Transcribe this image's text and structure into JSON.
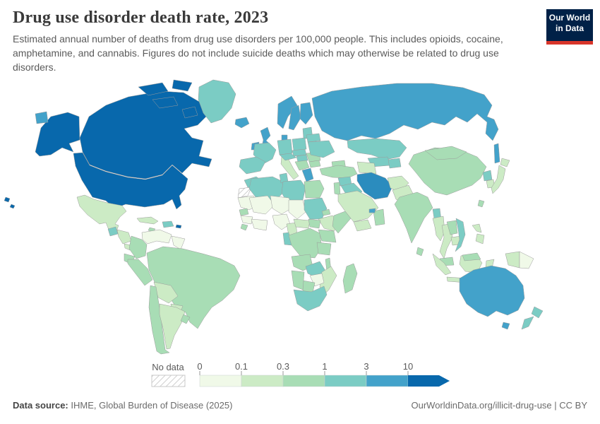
{
  "header": {
    "title": "Drug use disorder death rate, 2023",
    "subtitle": "Estimated annual number of deaths from drug use disorders per 100,000 people. This includes opioids, cocaine, amphetamine, and cannabis. Figures do not include suicide deaths which may otherwise be related to drug use disorders.",
    "logo_line1": "Our World",
    "logo_line2": "in Data"
  },
  "palette": {
    "c0": "#f0f9e8",
    "c1": "#ccebc5",
    "c2": "#a8ddb5",
    "c3": "#7bccc4",
    "c4": "#43a2ca",
    "c5": "#0868ac",
    "iran": "#2b8cbe"
  },
  "brand": {
    "logo_bg": "#002147",
    "logo_stripe": "#d8352a",
    "map_border": "#9b9b9b"
  },
  "legend": {
    "no_data_label": "No data",
    "ticks": [
      "0",
      "0.1",
      "0.3",
      "1",
      "3",
      "10"
    ],
    "colors": [
      "#f0f9e8",
      "#ccebc5",
      "#a8ddb5",
      "#7bccc4",
      "#43a2ca",
      "#0868ac"
    ]
  },
  "footer": {
    "data_source_label": "Data source:",
    "data_source": "IHME, Global Burden of Disease (2025)",
    "credit_link": "OurWorldinData.org/illicit-drug-use",
    "separator": " | ",
    "license": "CC BY"
  },
  "chart_data": {
    "type": "choropleth_map",
    "title": "Drug use disorder death rate, 2023",
    "unit": "deaths per 100,000 people",
    "bin_edges": [
      0,
      0.1,
      0.3,
      1,
      3,
      10
    ],
    "bin_colors": [
      "#f0f9e8",
      "#ccebc5",
      "#a8ddb5",
      "#7bccc4",
      "#43a2ca",
      "#0868ac"
    ],
    "open_ended_upper_bin": true,
    "regions_by_bin": {
      "0_to_0.1": [
        "Venezuela",
        "Guyana",
        "Suriname",
        "Mauritania",
        "Mali",
        "Niger",
        "Chad",
        "Nigeria",
        "Ghana",
        "Cote d'Ivoire",
        "Burkina Faso",
        "Guinea",
        "Zimbabwe",
        "Papua New Guinea"
      ],
      "0.1_to_0.3": [
        "Mexico",
        "Cuba",
        "Honduras",
        "Nicaragua",
        "Costa Rica",
        "Argentina",
        "Bolivia",
        "Paraguay",
        "Italy",
        "Saudi Arabia",
        "Yemen",
        "Pakistan",
        "Turkmenistan",
        "Afghanistan",
        "Myanmar",
        "Thailand",
        "Cambodia",
        "Japan",
        "South Korea",
        "Philippines",
        "Indonesia",
        "Ethiopia",
        "Mozambique",
        "Cameroon",
        "Central African Republic"
      ],
      "0.3_to_1": [
        "Brazil",
        "Colombia",
        "Ecuador",
        "Peru",
        "Chile",
        "Uruguay",
        "Panama",
        "Jamaica",
        "China",
        "Mongolia",
        "India",
        "Sri Lanka",
        "Nepal",
        "Laos",
        "Malaysia",
        "Taiwan",
        "Egypt",
        "Turkey",
        "Serbia",
        "Romania",
        "Bulgaria",
        "Senegal",
        "Sierra Leone",
        "Somalia",
        "Kenya",
        "Uganda",
        "Tanzania",
        "DR Congo",
        "Angola",
        "Namibia",
        "Botswana",
        "Madagascar",
        "Malawi",
        "Oman"
      ],
      "1_to_3": [
        "Greenland",
        "Spain",
        "Portugal",
        "France",
        "Germany",
        "Poland",
        "Czechia",
        "Austria",
        "Switzerland",
        "Hungary",
        "Ukraine",
        "Belarus",
        "Baltic states",
        "Morocco",
        "Algeria",
        "Tunisia",
        "Libya",
        "Sudan",
        "Eritrea",
        "South Africa",
        "Zambia",
        "Republic of Congo",
        "Guatemala",
        "Haiti",
        "Dominican Republic",
        "Kazakhstan",
        "Uzbekistan",
        "Kyrgyzstan",
        "Tajikistan",
        "Iraq",
        "Syria",
        "Bangladesh",
        "Vietnam",
        "North Korea",
        "New Zealand"
      ],
      "3_to_10": [
        "Russia",
        "Australia",
        "United Kingdom",
        "Ireland",
        "Iceland",
        "Norway",
        "Sweden",
        "Finland",
        "Denmark",
        "Greece",
        "Albania",
        "Iran",
        "United Arab Emirates"
      ],
      "over_10": [
        "United States",
        "Canada",
        "Puerto Rico"
      ],
      "no_data": [
        "Western Sahara",
        "French Guiana"
      ]
    }
  }
}
